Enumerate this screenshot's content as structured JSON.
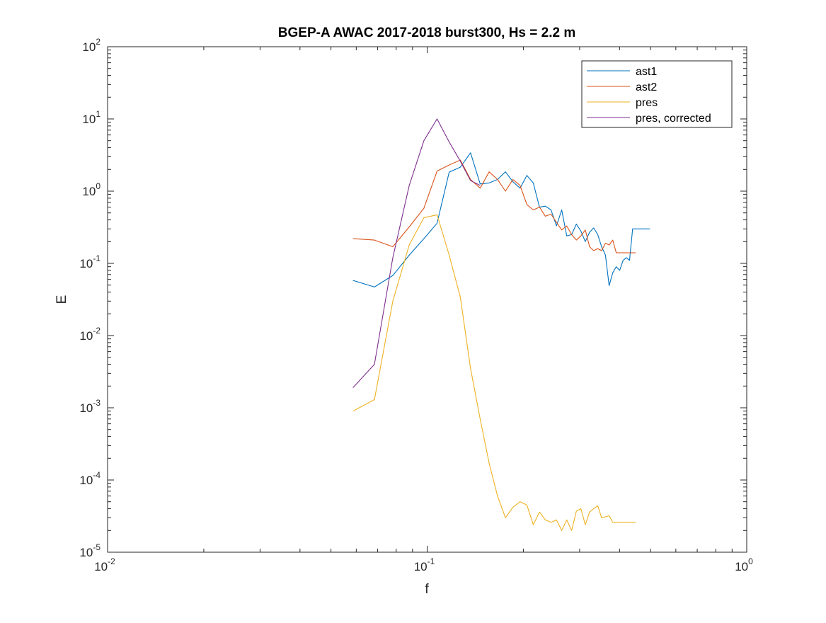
{
  "chart_data": {
    "type": "line",
    "title": "BGEP-A AWAC 2017-2018 burst300,  Hs = 2.2 m",
    "xlabel": "f",
    "ylabel": "E",
    "xscale": "log",
    "yscale": "log",
    "xlim": [
      0.01,
      1
    ],
    "ylim": [
      1e-05,
      100
    ],
    "x_ticks": [
      {
        "base": "10",
        "exp": "-2",
        "value": 0.01
      },
      {
        "base": "10",
        "exp": "-1",
        "value": 0.1
      },
      {
        "base": "10",
        "exp": "0",
        "value": 1
      }
    ],
    "y_ticks": [
      {
        "base": "10",
        "exp": "-5",
        "value": 1e-05
      },
      {
        "base": "10",
        "exp": "-4",
        "value": 0.0001
      },
      {
        "base": "10",
        "exp": "-3",
        "value": 0.001
      },
      {
        "base": "10",
        "exp": "-2",
        "value": 0.01
      },
      {
        "base": "10",
        "exp": "-1",
        "value": 0.1
      },
      {
        "base": "10",
        "exp": "0",
        "value": 1
      },
      {
        "base": "10",
        "exp": "1",
        "value": 10
      },
      {
        "base": "10",
        "exp": "2",
        "value": 100
      }
    ],
    "grid": false,
    "legend_position": "top-right",
    "series": [
      {
        "name": "ast1",
        "color": "#0072BD",
        "x": [
          0.0586,
          0.0684,
          0.0781,
          0.0879,
          0.0977,
          0.1074,
          0.1172,
          0.127,
          0.1367,
          0.1465,
          0.1563,
          0.166,
          0.1758,
          0.1855,
          0.1953,
          0.2051,
          0.2148,
          0.2246,
          0.2344,
          0.2441,
          0.2539,
          0.2637,
          0.2734,
          0.2832,
          0.293,
          0.3027,
          0.3125,
          0.3223,
          0.332,
          0.3418,
          0.3516,
          0.3613,
          0.3711,
          0.3809,
          0.3906,
          0.4004,
          0.4102,
          0.4199,
          0.4297,
          0.4395,
          0.4492,
          0.459,
          0.4688,
          0.4785,
          0.4883,
          0.498
        ],
        "y": [
          0.058,
          0.047,
          0.068,
          0.13,
          0.22,
          0.36,
          1.83,
          2.15,
          3.4,
          1.26,
          1.3,
          1.45,
          1.85,
          1.35,
          1.1,
          1.65,
          1.3,
          0.6,
          0.62,
          0.55,
          0.33,
          0.55,
          0.24,
          0.25,
          0.35,
          0.28,
          0.2,
          0.27,
          0.31,
          0.25,
          0.17,
          0.13,
          0.049,
          0.074,
          0.09,
          0.08,
          0.11,
          0.12,
          0.11,
          0.3,
          0.3,
          0.3,
          0.3,
          0.3,
          0.3,
          0.3
        ]
      },
      {
        "name": "ast2",
        "color": "#D95319",
        "x": [
          0.0586,
          0.0684,
          0.0781,
          0.0879,
          0.0977,
          0.1074,
          0.1172,
          0.127,
          0.1367,
          0.1465,
          0.1563,
          0.166,
          0.1758,
          0.1855,
          0.1953,
          0.2051,
          0.2148,
          0.2246,
          0.2344,
          0.2441,
          0.2539,
          0.2637,
          0.2734,
          0.2832,
          0.293,
          0.3027,
          0.3125,
          0.3223,
          0.332,
          0.3418,
          0.3516,
          0.3613,
          0.3711,
          0.3809,
          0.3906,
          0.4004,
          0.4102,
          0.4199,
          0.4297,
          0.4395,
          0.4492
        ],
        "y": [
          0.22,
          0.21,
          0.17,
          0.32,
          0.58,
          1.9,
          2.3,
          2.7,
          1.45,
          1.1,
          1.85,
          1.45,
          1.0,
          1.45,
          1.2,
          0.65,
          0.55,
          0.6,
          0.45,
          0.48,
          0.37,
          0.29,
          0.33,
          0.25,
          0.21,
          0.24,
          0.29,
          0.17,
          0.15,
          0.16,
          0.15,
          0.19,
          0.18,
          0.21,
          0.14,
          0.14,
          0.14,
          0.14,
          0.14,
          0.14,
          0.14
        ]
      },
      {
        "name": "pres",
        "color": "#EDB120",
        "x": [
          0.0586,
          0.0684,
          0.0781,
          0.0879,
          0.0977,
          0.1074,
          0.1172,
          0.127,
          0.1367,
          0.1465,
          0.1563,
          0.166,
          0.1758,
          0.1855,
          0.1953,
          0.2051,
          0.2148,
          0.2246,
          0.2344,
          0.2441,
          0.2539,
          0.2637,
          0.2734,
          0.2832,
          0.293,
          0.3027,
          0.3125,
          0.3223,
          0.332,
          0.3418,
          0.3516,
          0.3613,
          0.3711,
          0.3809,
          0.3906,
          0.4004,
          0.4102,
          0.4199,
          0.4297,
          0.4395,
          0.4492
        ],
        "y": [
          0.0009,
          0.0013,
          0.03,
          0.18,
          0.43,
          0.47,
          0.13,
          0.034,
          0.0035,
          0.0007,
          0.00017,
          6e-05,
          3e-05,
          4.2e-05,
          5e-05,
          4.5e-05,
          2.4e-05,
          3.6e-05,
          2.8e-05,
          2.6e-05,
          2.8e-05,
          2e-05,
          2.8e-05,
          2e-05,
          3.7e-05,
          4e-05,
          2.4e-05,
          3.6e-05,
          4e-05,
          4.4e-05,
          3e-05,
          3.1e-05,
          3.2e-05,
          2.6e-05,
          2.6e-05,
          2.6e-05,
          2.6e-05,
          2.6e-05,
          2.6e-05,
          2.6e-05,
          2.6e-05
        ]
      },
      {
        "name": "pres, corrected",
        "color": "#7E2F8E",
        "x": [
          0.0586,
          0.0684,
          0.0781,
          0.0879,
          0.0977,
          0.1074,
          0.1172,
          0.127,
          0.1367,
          0.1465
        ],
        "y": [
          0.0019,
          0.004,
          0.12,
          1.2,
          5.0,
          10.0,
          4.8,
          2.6,
          1.4,
          1.2
        ]
      }
    ]
  }
}
